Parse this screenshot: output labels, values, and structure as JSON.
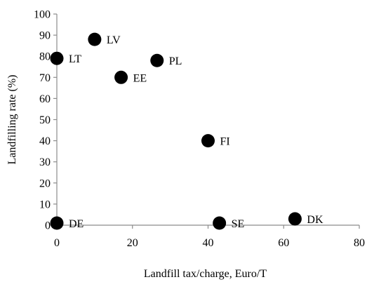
{
  "chart_data": {
    "type": "scatter",
    "title": "",
    "xlabel": "Landfill tax/charge, Euro/T",
    "ylabel": "Landfilling rate (%)",
    "xlim": [
      0,
      80
    ],
    "ylim": [
      0,
      100
    ],
    "x_ticks": [
      0,
      20,
      40,
      60,
      80
    ],
    "y_ticks": [
      0,
      10,
      20,
      30,
      40,
      50,
      60,
      70,
      80,
      90,
      100
    ],
    "grid": false,
    "legend": "none",
    "marker_color": "#000000",
    "points": [
      {
        "label": "LT",
        "x": 0,
        "y": 79
      },
      {
        "label": "LV",
        "x": 10,
        "y": 88
      },
      {
        "label": "PL",
        "x": 26.5,
        "y": 78
      },
      {
        "label": "EE",
        "x": 17,
        "y": 70
      },
      {
        "label": "FI",
        "x": 40,
        "y": 40
      },
      {
        "label": "DE",
        "x": 0,
        "y": 1
      },
      {
        "label": "SE",
        "x": 43,
        "y": 1
      },
      {
        "label": "DK",
        "x": 63,
        "y": 3
      }
    ]
  }
}
